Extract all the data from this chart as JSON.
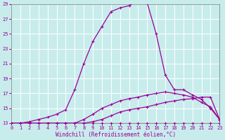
{
  "xlabel": "Windchill (Refroidissement éolien,°C)",
  "ylabel": "",
  "xlim": [
    0,
    23
  ],
  "ylim": [
    13,
    29
  ],
  "yticks": [
    13,
    15,
    17,
    19,
    21,
    23,
    25,
    27,
    29
  ],
  "xticks": [
    0,
    1,
    2,
    3,
    4,
    5,
    6,
    7,
    8,
    9,
    10,
    11,
    12,
    13,
    14,
    15,
    16,
    17,
    18,
    19,
    20,
    21,
    22,
    23
  ],
  "bg_color": "#c8ecec",
  "grid_color": "#b0d0d0",
  "line_color": "#990099",
  "curves": [
    [
      13,
      13,
      13,
      13,
      13,
      13,
      13,
      13,
      13,
      13,
      13,
      13,
      13,
      13,
      13,
      13,
      13,
      13,
      13,
      13,
      13,
      13,
      13,
      13
    ],
    [
      13,
      13,
      13,
      13,
      13,
      13,
      13,
      13,
      13,
      13.2,
      13.5,
      14.0,
      14.5,
      14.8,
      15.0,
      15.2,
      15.5,
      15.8,
      16.0,
      16.2,
      16.3,
      16.5,
      16.5,
      13.5
    ],
    [
      13,
      13,
      13,
      13,
      13,
      13,
      13,
      13,
      13.5,
      14.2,
      15.0,
      15.5,
      16.0,
      16.3,
      16.5,
      16.8,
      17.0,
      17.2,
      17.0,
      16.8,
      16.5,
      15.8,
      15.2,
      13.5
    ],
    [
      13,
      13,
      13.2,
      13.5,
      13.8,
      14.2,
      14.8,
      17.5,
      21.0,
      24.0,
      26.0,
      28.0,
      28.5,
      28.8,
      29.5,
      29.2,
      25.0,
      19.5,
      17.5,
      17.5,
      16.8,
      16.2,
      15.0,
      13.5
    ]
  ]
}
